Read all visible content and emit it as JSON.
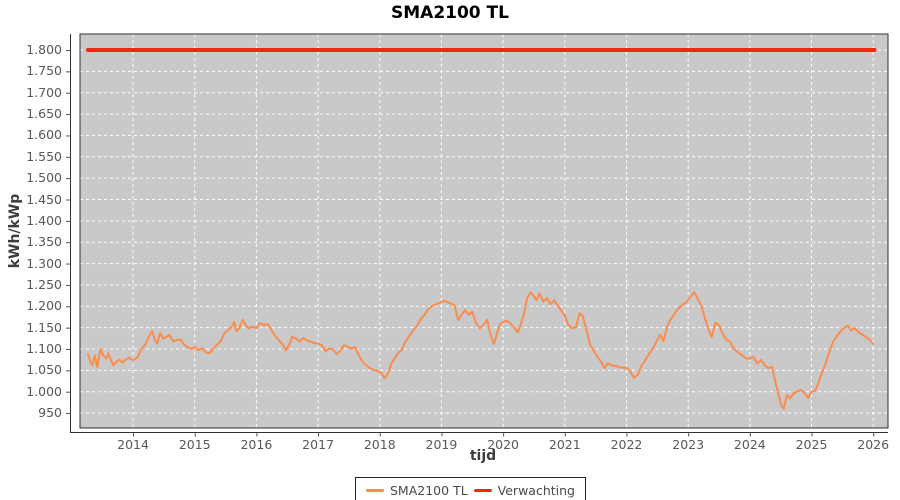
{
  "title": "SMA2100 TL",
  "colors": {
    "plot_background": "#c9c9c9",
    "grid": "#ffffff",
    "axis": "#2f2f2f",
    "tick": "#555555",
    "series_sma": "#fa8c4e",
    "series_verwachting": "#ea2c0e"
  },
  "chart_data": {
    "type": "line",
    "title": "SMA2100 TL",
    "xlabel": "tijd",
    "ylabel": "kWh/kWp",
    "xlim": [
      2013.14,
      2026.24
    ],
    "ylim": [
      915,
      1837.5
    ],
    "grid": true,
    "legend_position": "bottom",
    "x_ticks": [
      2014,
      2015,
      2016,
      2017,
      2018,
      2019,
      2020,
      2021,
      2022,
      2023,
      2024,
      2025,
      2026
    ],
    "x_tick_labels": [
      "2014",
      "2015",
      "2016",
      "2017",
      "2018",
      "2019",
      "2020",
      "2021",
      "2022",
      "2023",
      "2024",
      "2025",
      "2026"
    ],
    "y_ticks": [
      950,
      1000,
      1050,
      1100,
      1150,
      1200,
      1250,
      1300,
      1350,
      1400,
      1450,
      1500,
      1550,
      1600,
      1650,
      1700,
      1750,
      1800
    ],
    "y_tick_labels": [
      "950",
      "1.000",
      "1.050",
      "1.100",
      "1.150",
      "1.200",
      "1.250",
      "1.300",
      "1.350",
      "1.400",
      "1.450",
      "1.500",
      "1.550",
      "1.600",
      "1.650",
      "1.700",
      "1.750",
      "1.800"
    ],
    "series": [
      {
        "name": "SMA2100 TL",
        "color": "#fa8c4e",
        "width": 2,
        "points": [
          [
            2013.27,
            1088
          ],
          [
            2013.31,
            1070
          ],
          [
            2013.34,
            1062
          ],
          [
            2013.38,
            1085
          ],
          [
            2013.42,
            1058
          ],
          [
            2013.47,
            1100
          ],
          [
            2013.52,
            1085
          ],
          [
            2013.57,
            1078
          ],
          [
            2013.6,
            1090
          ],
          [
            2013.64,
            1075
          ],
          [
            2013.68,
            1062
          ],
          [
            2013.73,
            1070
          ],
          [
            2013.78,
            1075
          ],
          [
            2013.83,
            1068
          ],
          [
            2013.88,
            1075
          ],
          [
            2013.94,
            1080
          ],
          [
            2014.0,
            1074
          ],
          [
            2014.07,
            1080
          ],
          [
            2014.13,
            1098
          ],
          [
            2014.2,
            1112
          ],
          [
            2014.26,
            1130
          ],
          [
            2014.31,
            1142
          ],
          [
            2014.35,
            1122
          ],
          [
            2014.39,
            1113
          ],
          [
            2014.44,
            1137
          ],
          [
            2014.49,
            1124
          ],
          [
            2014.54,
            1128
          ],
          [
            2014.59,
            1133
          ],
          [
            2014.65,
            1118
          ],
          [
            2014.71,
            1121
          ],
          [
            2014.77,
            1122
          ],
          [
            2014.83,
            1110
          ],
          [
            2014.89,
            1104
          ],
          [
            2014.95,
            1100
          ],
          [
            2015.0,
            1105
          ],
          [
            2015.06,
            1097
          ],
          [
            2015.12,
            1102
          ],
          [
            2015.18,
            1092
          ],
          [
            2015.24,
            1090
          ],
          [
            2015.3,
            1101
          ],
          [
            2015.36,
            1110
          ],
          [
            2015.42,
            1118
          ],
          [
            2015.48,
            1136
          ],
          [
            2015.54,
            1144
          ],
          [
            2015.6,
            1152
          ],
          [
            2015.64,
            1163
          ],
          [
            2015.68,
            1141
          ],
          [
            2015.73,
            1151
          ],
          [
            2015.78,
            1168
          ],
          [
            2015.83,
            1155
          ],
          [
            2015.88,
            1148
          ],
          [
            2015.94,
            1153
          ],
          [
            2016.0,
            1149
          ],
          [
            2016.06,
            1161
          ],
          [
            2016.12,
            1156
          ],
          [
            2016.18,
            1159
          ],
          [
            2016.24,
            1145
          ],
          [
            2016.3,
            1131
          ],
          [
            2016.36,
            1121
          ],
          [
            2016.42,
            1112
          ],
          [
            2016.48,
            1097
          ],
          [
            2016.54,
            1112
          ],
          [
            2016.58,
            1129
          ],
          [
            2016.64,
            1125
          ],
          [
            2016.7,
            1117
          ],
          [
            2016.76,
            1126
          ],
          [
            2016.82,
            1120
          ],
          [
            2016.88,
            1117
          ],
          [
            2016.94,
            1114
          ],
          [
            2017.0,
            1113
          ],
          [
            2017.06,
            1109
          ],
          [
            2017.12,
            1095
          ],
          [
            2017.18,
            1101
          ],
          [
            2017.24,
            1100
          ],
          [
            2017.3,
            1088
          ],
          [
            2017.36,
            1096
          ],
          [
            2017.42,
            1109
          ],
          [
            2017.48,
            1105
          ],
          [
            2017.54,
            1101
          ],
          [
            2017.6,
            1105
          ],
          [
            2017.66,
            1085
          ],
          [
            2017.72,
            1070
          ],
          [
            2017.78,
            1062
          ],
          [
            2017.84,
            1055
          ],
          [
            2017.9,
            1051
          ],
          [
            2017.96,
            1049
          ],
          [
            2018.02,
            1045
          ],
          [
            2018.08,
            1031
          ],
          [
            2018.13,
            1042
          ],
          [
            2018.18,
            1063
          ],
          [
            2018.24,
            1078
          ],
          [
            2018.3,
            1091
          ],
          [
            2018.36,
            1099
          ],
          [
            2018.42,
            1118
          ],
          [
            2018.48,
            1131
          ],
          [
            2018.54,
            1143
          ],
          [
            2018.6,
            1153
          ],
          [
            2018.66,
            1169
          ],
          [
            2018.72,
            1179
          ],
          [
            2018.78,
            1192
          ],
          [
            2018.84,
            1200
          ],
          [
            2018.9,
            1204
          ],
          [
            2018.95,
            1207
          ],
          [
            2019.0,
            1210
          ],
          [
            2019.05,
            1213
          ],
          [
            2019.1,
            1209
          ],
          [
            2019.16,
            1206
          ],
          [
            2019.21,
            1203
          ],
          [
            2019.27,
            1168
          ],
          [
            2019.33,
            1181
          ],
          [
            2019.38,
            1191
          ],
          [
            2019.44,
            1180
          ],
          [
            2019.5,
            1187
          ],
          [
            2019.56,
            1161
          ],
          [
            2019.62,
            1148
          ],
          [
            2019.68,
            1156
          ],
          [
            2019.74,
            1168
          ],
          [
            2019.8,
            1131
          ],
          [
            2019.85,
            1112
          ],
          [
            2019.9,
            1136
          ],
          [
            2019.95,
            1159
          ],
          [
            2020.0,
            1163
          ],
          [
            2020.06,
            1166
          ],
          [
            2020.12,
            1160
          ],
          [
            2020.18,
            1149
          ],
          [
            2020.24,
            1139
          ],
          [
            2020.29,
            1159
          ],
          [
            2020.34,
            1184
          ],
          [
            2020.39,
            1219
          ],
          [
            2020.44,
            1232
          ],
          [
            2020.49,
            1226
          ],
          [
            2020.54,
            1214
          ],
          [
            2020.59,
            1230
          ],
          [
            2020.65,
            1211
          ],
          [
            2020.71,
            1219
          ],
          [
            2020.77,
            1205
          ],
          [
            2020.83,
            1214
          ],
          [
            2020.89,
            1200
          ],
          [
            2020.95,
            1189
          ],
          [
            2021.0,
            1178
          ],
          [
            2021.06,
            1156
          ],
          [
            2021.12,
            1148
          ],
          [
            2021.18,
            1151
          ],
          [
            2021.24,
            1184
          ],
          [
            2021.29,
            1177
          ],
          [
            2021.35,
            1145
          ],
          [
            2021.41,
            1110
          ],
          [
            2021.47,
            1095
          ],
          [
            2021.53,
            1082
          ],
          [
            2021.59,
            1070
          ],
          [
            2021.64,
            1055
          ],
          [
            2021.7,
            1067
          ],
          [
            2021.76,
            1062
          ],
          [
            2021.82,
            1060
          ],
          [
            2021.88,
            1058
          ],
          [
            2021.94,
            1056
          ],
          [
            2022.0,
            1056
          ],
          [
            2022.06,
            1048
          ],
          [
            2022.12,
            1032
          ],
          [
            2022.18,
            1039
          ],
          [
            2022.24,
            1060
          ],
          [
            2022.31,
            1075
          ],
          [
            2022.38,
            1092
          ],
          [
            2022.44,
            1105
          ],
          [
            2022.5,
            1121
          ],
          [
            2022.55,
            1133
          ],
          [
            2022.6,
            1118
          ],
          [
            2022.67,
            1157
          ],
          [
            2022.74,
            1175
          ],
          [
            2022.82,
            1191
          ],
          [
            2022.9,
            1203
          ],
          [
            2022.97,
            1210
          ],
          [
            2023.04,
            1222
          ],
          [
            2023.1,
            1233
          ],
          [
            2023.16,
            1216
          ],
          [
            2023.22,
            1199
          ],
          [
            2023.28,
            1168
          ],
          [
            2023.33,
            1145
          ],
          [
            2023.38,
            1128
          ],
          [
            2023.44,
            1161
          ],
          [
            2023.5,
            1156
          ],
          [
            2023.56,
            1136
          ],
          [
            2023.62,
            1122
          ],
          [
            2023.68,
            1117
          ],
          [
            2023.74,
            1101
          ],
          [
            2023.8,
            1093
          ],
          [
            2023.87,
            1086
          ],
          [
            2023.94,
            1078
          ],
          [
            2024.0,
            1077
          ],
          [
            2024.06,
            1082
          ],
          [
            2024.12,
            1066
          ],
          [
            2024.18,
            1074
          ],
          [
            2024.24,
            1062
          ],
          [
            2024.3,
            1055
          ],
          [
            2024.36,
            1058
          ],
          [
            2024.42,
            1020
          ],
          [
            2024.46,
            996
          ],
          [
            2024.51,
            968
          ],
          [
            2024.55,
            960
          ],
          [
            2024.6,
            992
          ],
          [
            2024.65,
            984
          ],
          [
            2024.71,
            996
          ],
          [
            2024.77,
            1001
          ],
          [
            2024.83,
            1004
          ],
          [
            2024.89,
            996
          ],
          [
            2024.95,
            986
          ],
          [
            2025.0,
            1000
          ],
          [
            2025.06,
            1002
          ],
          [
            2025.11,
            1020
          ],
          [
            2025.17,
            1045
          ],
          [
            2025.23,
            1066
          ],
          [
            2025.29,
            1093
          ],
          [
            2025.35,
            1117
          ],
          [
            2025.41,
            1130
          ],
          [
            2025.47,
            1141
          ],
          [
            2025.53,
            1150
          ],
          [
            2025.59,
            1155
          ],
          [
            2025.64,
            1143
          ],
          [
            2025.7,
            1149
          ],
          [
            2025.76,
            1139
          ],
          [
            2025.82,
            1134
          ],
          [
            2025.88,
            1128
          ],
          [
            2025.94,
            1122
          ],
          [
            2026.0,
            1112
          ]
        ]
      },
      {
        "name": "Verwachting",
        "color": "#ea2c0e",
        "width": 4,
        "points": [
          [
            2013.27,
            1800
          ],
          [
            2026.02,
            1800
          ]
        ]
      }
    ]
  }
}
